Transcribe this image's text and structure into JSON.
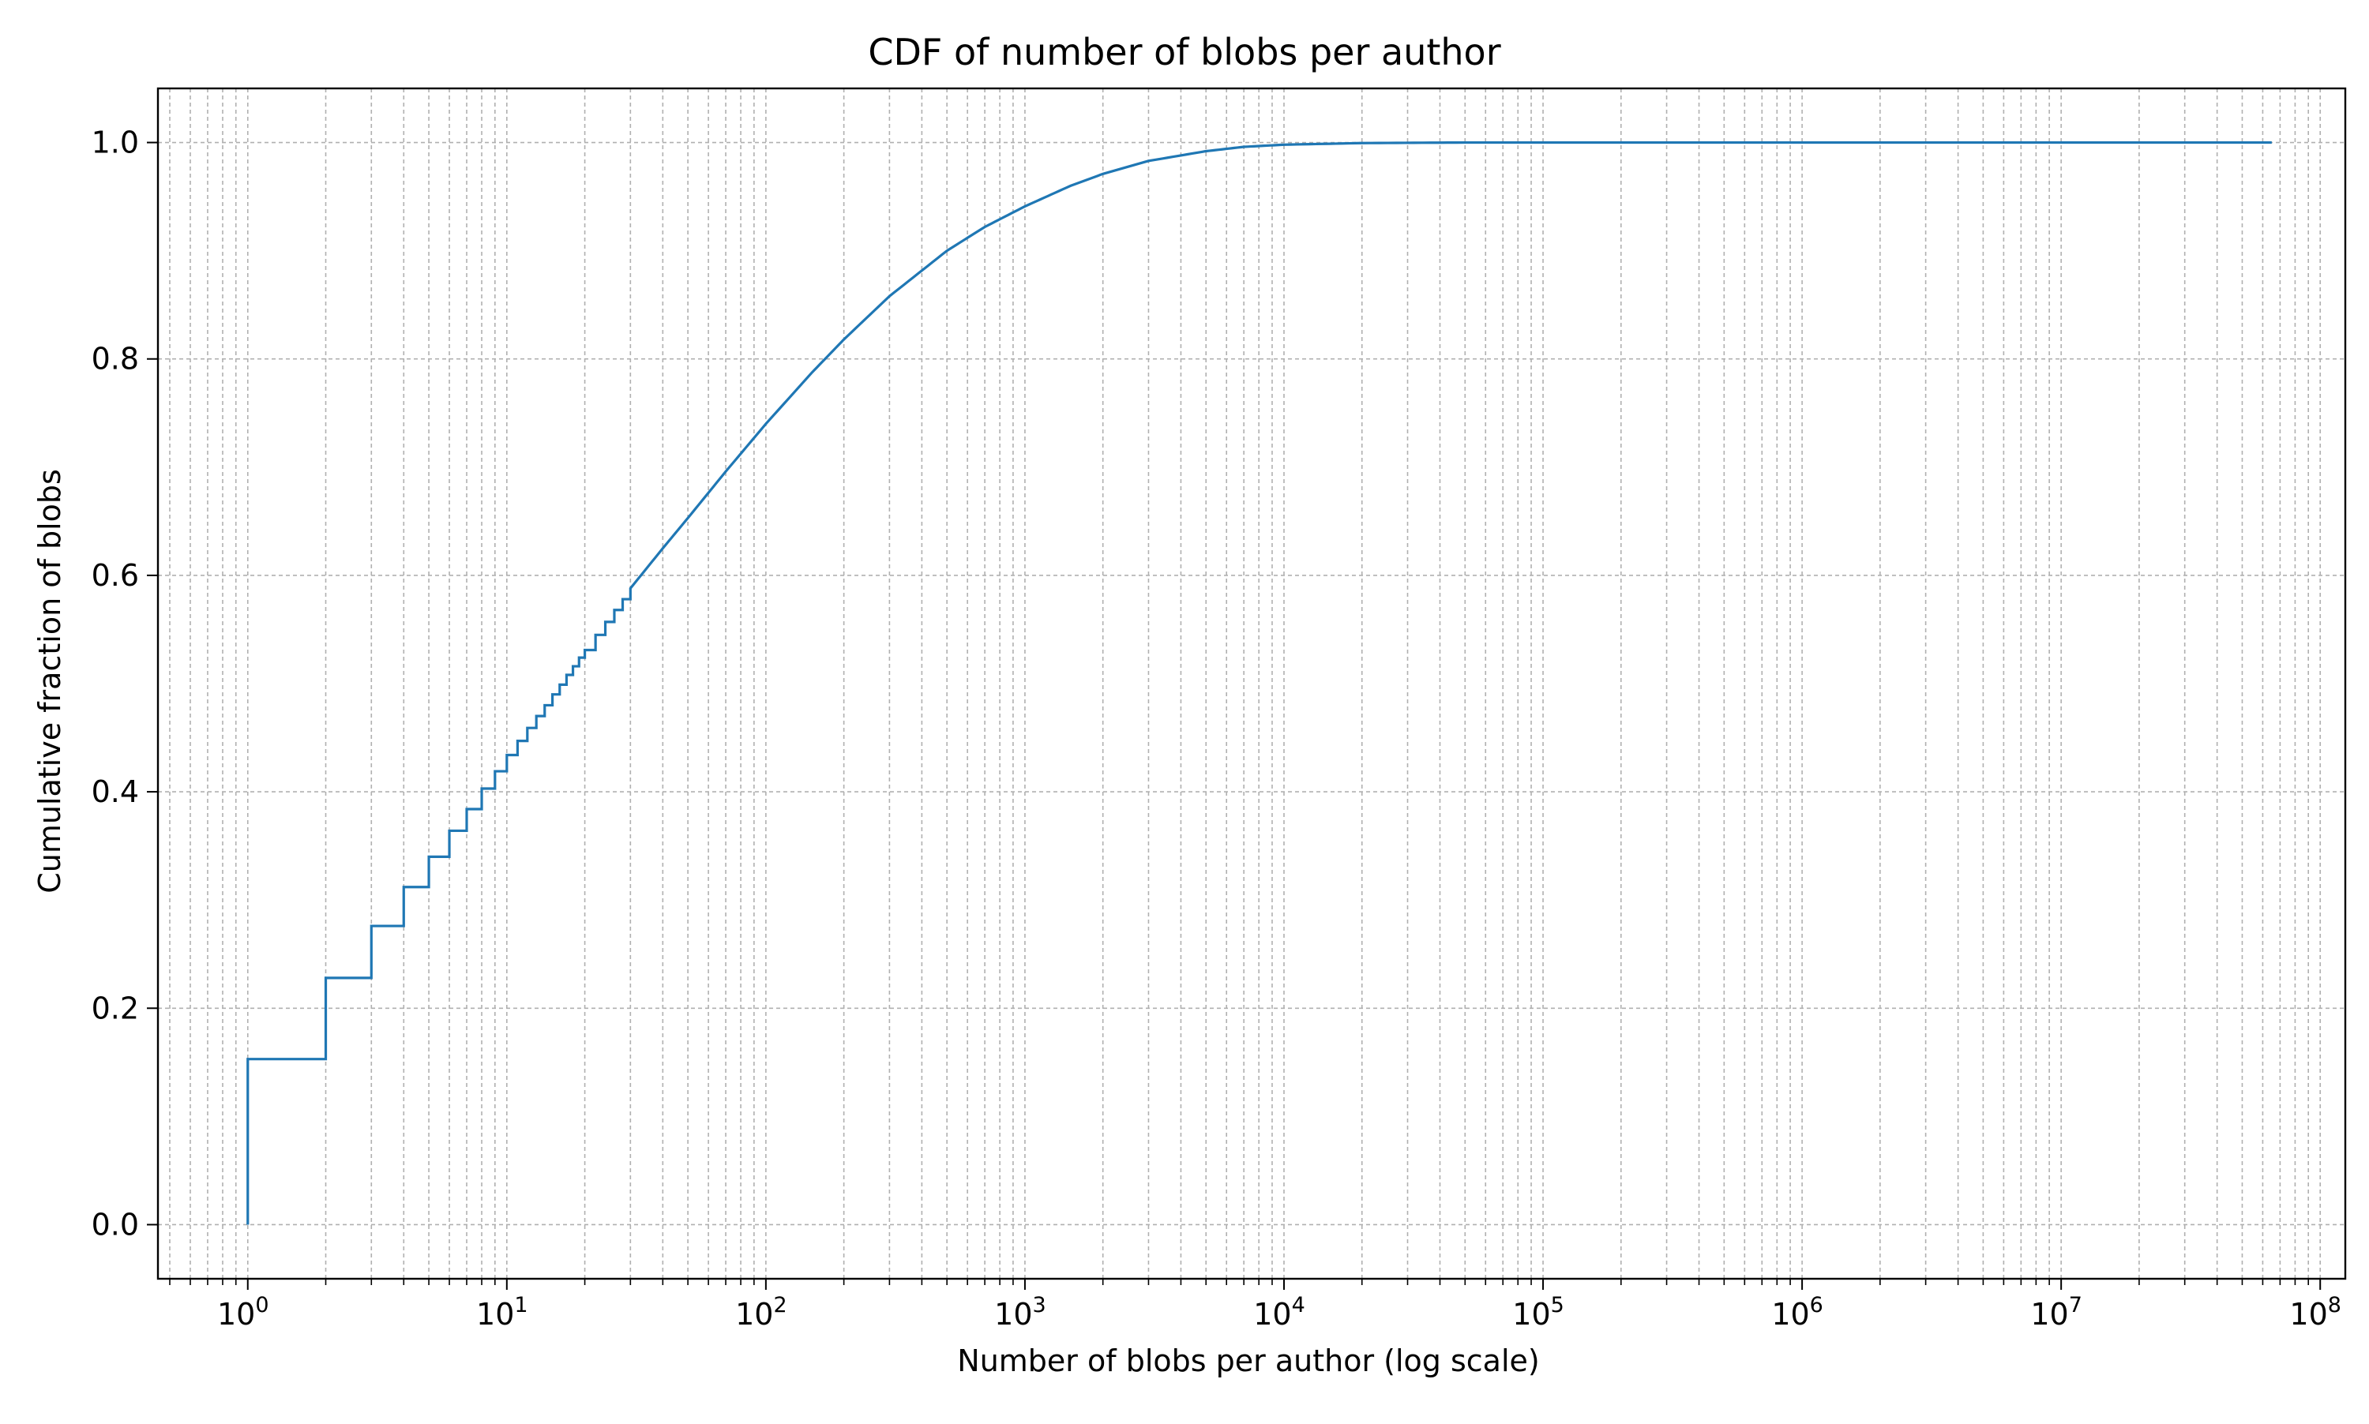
{
  "chart_data": {
    "type": "line",
    "title": "CDF of number of blobs per author",
    "xlabel": "Number of blobs per author (log scale)",
    "ylabel": "Cumulative fraction of blobs",
    "x_scale": "log",
    "xlim": [
      0.45,
      125000000
    ],
    "ylim": [
      -0.05,
      1.05
    ],
    "grid": true,
    "grid_minor_x": true,
    "x_ticks": [
      {
        "value": 1,
        "base": "10",
        "exp": "0"
      },
      {
        "value": 10,
        "base": "10",
        "exp": "1"
      },
      {
        "value": 100,
        "base": "10",
        "exp": "2"
      },
      {
        "value": 1000,
        "base": "10",
        "exp": "3"
      },
      {
        "value": 10000,
        "base": "10",
        "exp": "4"
      },
      {
        "value": 100000,
        "base": "10",
        "exp": "5"
      },
      {
        "value": 1000000,
        "base": "10",
        "exp": "6"
      },
      {
        "value": 10000000,
        "base": "10",
        "exp": "7"
      },
      {
        "value": 100000000,
        "base": "10",
        "exp": "8"
      }
    ],
    "y_ticks": [
      {
        "value": 0.0,
        "label": "0.0"
      },
      {
        "value": 0.2,
        "label": "0.2"
      },
      {
        "value": 0.4,
        "label": "0.4"
      },
      {
        "value": 0.6,
        "label": "0.6"
      },
      {
        "value": 0.8,
        "label": "0.8"
      },
      {
        "value": 1.0,
        "label": "1.0"
      }
    ],
    "series": [
      {
        "color": "#1f77b4",
        "step_points": [
          [
            1,
            0.0
          ],
          [
            1,
            0.153
          ],
          [
            2,
            0.228
          ],
          [
            3,
            0.276
          ],
          [
            4,
            0.312
          ],
          [
            5,
            0.34
          ],
          [
            6,
            0.364
          ],
          [
            7,
            0.384
          ],
          [
            8,
            0.403
          ],
          [
            9,
            0.419
          ],
          [
            10,
            0.434
          ],
          [
            11,
            0.447
          ],
          [
            12,
            0.459
          ],
          [
            13,
            0.47
          ],
          [
            14,
            0.48
          ],
          [
            15,
            0.49
          ],
          [
            16,
            0.499
          ],
          [
            17,
            0.508
          ],
          [
            18,
            0.516
          ],
          [
            19,
            0.524
          ],
          [
            20,
            0.531
          ],
          [
            22,
            0.545
          ],
          [
            24,
            0.557
          ],
          [
            26,
            0.568
          ],
          [
            28,
            0.578
          ],
          [
            30,
            0.588
          ]
        ],
        "smooth_points": [
          [
            30,
            0.588
          ],
          [
            40,
            0.625
          ],
          [
            50,
            0.653
          ],
          [
            70,
            0.696
          ],
          [
            100,
            0.74
          ],
          [
            150,
            0.787
          ],
          [
            200,
            0.818
          ],
          [
            300,
            0.858
          ],
          [
            500,
            0.9
          ],
          [
            700,
            0.922
          ],
          [
            1000,
            0.941
          ],
          [
            1500,
            0.96
          ],
          [
            2000,
            0.971
          ],
          [
            3000,
            0.983
          ],
          [
            5000,
            0.992
          ],
          [
            7000,
            0.996
          ],
          [
            10000,
            0.998
          ],
          [
            20000,
            0.9995
          ],
          [
            50000,
            1.0
          ],
          [
            65000000,
            1.0
          ]
        ]
      }
    ]
  }
}
